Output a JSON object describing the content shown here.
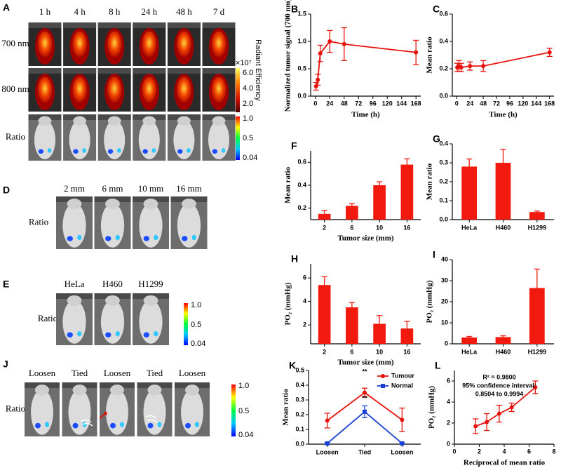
{
  "images": {
    "A": {
      "label": "A",
      "columns": [
        "1 h",
        "4 h",
        "8 h",
        "24 h",
        "48 h",
        "7 d"
      ],
      "rows": [
        "700 nm",
        "800 nm",
        "Ratio"
      ],
      "colorbar_exponent": "×10⁷",
      "colorbar_title": "Radiant Efficiency",
      "colorbar_labels": [
        "6.0",
        "4.0",
        "2.0"
      ],
      "ratio_colorbar_labels": [
        "1.0",
        "0.5",
        "0.04"
      ]
    },
    "D": {
      "label": "D",
      "columns": [
        "2 mm",
        "6 mm",
        "10 mm",
        "16 mm"
      ],
      "rows": [
        "Ratio"
      ]
    },
    "E": {
      "label": "E",
      "columns": [
        "HeLa",
        "H460",
        "H1299"
      ],
      "rows": [
        "Ratio"
      ],
      "ratio_colorbar_labels": [
        "1.0",
        "0.5",
        "0.04"
      ]
    },
    "J": {
      "label": "J",
      "columns": [
        "Loosen",
        "Tied",
        "Loosen",
        "Tied",
        "Loosen"
      ],
      "rows": [
        "Ratio"
      ],
      "ratio_colorbar_labels": [
        "1.0",
        "0.5",
        "0.04"
      ]
    }
  },
  "chart_data": [
    {
      "label": "B",
      "type": "line",
      "x": [
        1,
        4,
        8,
        24,
        48,
        168
      ],
      "series": [
        {
          "color": "#e8120c",
          "marker": "circle",
          "values": [
            0.18,
            0.3,
            0.78,
            1.0,
            0.95,
            0.8
          ],
          "errors": [
            0.07,
            0.1,
            0.15,
            0.2,
            0.3,
            0.22
          ]
        }
      ],
      "xlim": [
        -8,
        176
      ],
      "xticks": [
        0,
        24,
        48,
        72,
        96,
        120,
        144,
        168
      ],
      "ylim": [
        0,
        1.5
      ],
      "yticks": [
        {
          "value": 0,
          "label": "0.0"
        },
        {
          "value": 0.5,
          "label": "0.5"
        },
        {
          "value": 1,
          "label": "1.0"
        },
        {
          "value": 1.5,
          "label": "1.5"
        }
      ],
      "xlabel": "Time (h)",
      "ylabel": "Normalized tumor signal (700 nm)"
    },
    {
      "label": "C",
      "type": "line",
      "x": [
        1,
        4,
        8,
        24,
        48,
        168
      ],
      "series": [
        {
          "color": "#e8120c",
          "marker": "circle",
          "values": [
            0.21,
            0.22,
            0.21,
            0.22,
            0.22,
            0.32
          ],
          "errors": [
            0.03,
            0.04,
            0.03,
            0.03,
            0.04,
            0.03
          ]
        }
      ],
      "xlim": [
        -8,
        176
      ],
      "xticks": [
        0,
        24,
        48,
        72,
        96,
        120,
        144,
        168
      ],
      "ylim": [
        0,
        0.6
      ],
      "yticks": [
        {
          "value": 0,
          "label": "0.0"
        },
        {
          "value": 0.2,
          "label": "0.2"
        },
        {
          "value": 0.4,
          "label": "0.4"
        },
        {
          "value": 0.6,
          "label": "0.6"
        }
      ],
      "xlabel": "Time (h)",
      "ylabel": "Mean ratio"
    },
    {
      "label": "F",
      "type": "bar",
      "categories": [
        "2",
        "6",
        "10",
        "16"
      ],
      "series": [
        {
          "color": "#f21a0e",
          "values": [
            0.15,
            0.22,
            0.4,
            0.58
          ],
          "errors": [
            0.03,
            0.02,
            0.03,
            0.05
          ]
        }
      ],
      "ylim": [
        0.1,
        0.7
      ],
      "yticks": [
        0.2,
        0.4,
        0.6
      ],
      "xlabel": "Tumor size (mm)",
      "ylabel": "Mean ratio"
    },
    {
      "label": "G",
      "type": "bar",
      "categories": [
        "HeLa",
        "H460",
        "H1299"
      ],
      "series": [
        {
          "color": "#f21a0e",
          "values": [
            0.28,
            0.3,
            0.04
          ],
          "errors": [
            0.04,
            0.07,
            0.005
          ]
        }
      ],
      "ylim": [
        0,
        0.4
      ],
      "yticks": [
        {
          "value": 0,
          "label": "0.0"
        },
        {
          "value": 0.1,
          "label": "0.1"
        },
        {
          "value": 0.2,
          "label": "0.2"
        },
        {
          "value": 0.3,
          "label": "0.3"
        },
        {
          "value": 0.4,
          "label": "0.4"
        }
      ],
      "ylabel": "Mean ratio"
    },
    {
      "label": "H",
      "type": "bar",
      "categories": [
        "2",
        "6",
        "10",
        "16"
      ],
      "series": [
        {
          "color": "#f21a0e",
          "values": [
            5.4,
            3.5,
            2.1,
            1.7
          ],
          "errors": [
            0.7,
            0.4,
            0.7,
            0.6
          ]
        }
      ],
      "ylim": [
        0.4,
        7.2
      ],
      "yticks": [
        2,
        4,
        6
      ],
      "xlabel": "Tumor size (mm)",
      "ylabel": "PO₂ (mmHg)"
    },
    {
      "label": "I",
      "type": "bar",
      "categories": [
        "HeLa",
        "H460",
        "H1299"
      ],
      "series": [
        {
          "color": "#f21a0e",
          "values": [
            3,
            3.2,
            26.5
          ],
          "errors": [
            0.5,
            0.6,
            9
          ]
        }
      ],
      "ylim": [
        0,
        40
      ],
      "yticks": [
        0,
        10,
        20,
        30,
        40
      ],
      "ylabel": "PO₂ (mmHg)"
    },
    {
      "label": "K",
      "type": "line",
      "categories": [
        "Loosen",
        "Tied",
        "Loosen"
      ],
      "series": [
        {
          "name": "Tumour",
          "color": "#e8120c",
          "marker": "circle",
          "values": [
            0.16,
            0.35,
            0.165
          ],
          "errors": [
            0.05,
            0.03,
            0.08
          ]
        },
        {
          "name": "Normal",
          "color": "#1a3fd6",
          "marker": "square",
          "values": [
            0.005,
            0.22,
            0.005
          ],
          "errors": [
            0.005,
            0.04,
            0.005
          ]
        }
      ],
      "ylim": [
        0,
        0.5
      ],
      "yticks": [
        {
          "value": 0,
          "label": "0.0"
        },
        {
          "value": 0.1,
          "label": "0.1"
        },
        {
          "value": 0.2,
          "label": "0.2"
        },
        {
          "value": 0.3,
          "label": "0.3"
        },
        {
          "value": 0.4,
          "label": "0.4"
        },
        {
          "value": 0.5,
          "label": "0.5"
        }
      ],
      "ylabel": "Mean ratio",
      "legend": "upper right",
      "annotations": [
        "**",
        "**"
      ]
    },
    {
      "label": "L",
      "type": "line",
      "x": [
        1.7,
        2.6,
        3.6,
        4.6,
        6.5
      ],
      "series": [
        {
          "color": "#e8120c",
          "marker": "circle",
          "values": [
            1.7,
            2.1,
            2.9,
            3.5,
            5.4
          ],
          "errors": [
            0.7,
            0.8,
            0.8,
            0.4,
            0.6
          ]
        }
      ],
      "xlim": [
        0,
        8
      ],
      "xticks": [
        0,
        2,
        4,
        6,
        8
      ],
      "ylim": [
        0,
        7
      ],
      "yticks": [
        0,
        2,
        4,
        6
      ],
      "xlabel": "Reciprocal of mean ratio",
      "ylabel": "PO₂ (mmHg)",
      "annotations": [
        "R² = 0.9800",
        "95% confidence interval:",
        "0.8504 to 0.9994"
      ]
    }
  ]
}
